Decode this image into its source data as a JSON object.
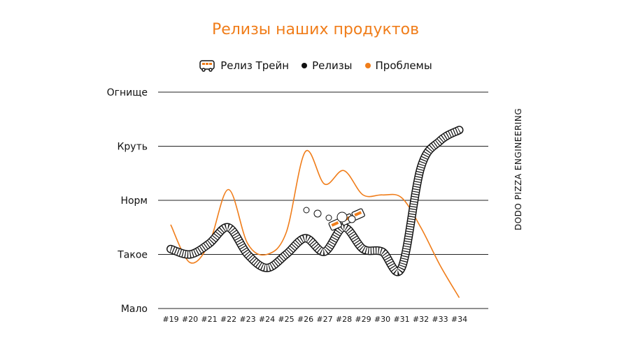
{
  "chart_data": {
    "type": "line",
    "title": "Релизы наших продуктов",
    "categories": [
      "#19",
      "#20",
      "#21",
      "#22",
      "#23",
      "#24",
      "#25",
      "#26",
      "#27",
      "#28",
      "#29",
      "#30",
      "#31",
      "#32",
      "#33",
      "#34"
    ],
    "y_levels": [
      "Мало",
      "Такое",
      "Норм",
      "Круть",
      "Огнище"
    ],
    "ylim": [
      0,
      4
    ],
    "grid": true,
    "legend_position": "top-center",
    "series": [
      {
        "name": "Релиз Трейн",
        "kind": "train-track",
        "color": "#111111",
        "values": [
          1.1,
          1.0,
          1.2,
          1.5,
          1.0,
          0.75,
          1.0,
          1.3,
          1.05,
          1.5,
          1.1,
          1.05,
          0.75,
          2.6,
          3.1,
          3.3
        ]
      },
      {
        "name": "Релизы",
        "kind": "dot",
        "color": "#111111",
        "values": [
          1.1,
          1.0,
          1.2,
          1.5,
          1.0,
          0.75,
          1.0,
          1.3,
          1.05,
          1.5,
          1.1,
          1.05,
          0.75,
          2.6,
          3.1,
          3.3
        ]
      },
      {
        "name": "Проблемы",
        "kind": "line",
        "color": "#f07d1a",
        "values": [
          1.55,
          0.85,
          1.2,
          2.2,
          1.2,
          1.0,
          1.4,
          2.9,
          2.3,
          2.55,
          2.1,
          2.1,
          2.05,
          1.5,
          0.8,
          0.2
        ]
      }
    ],
    "side_note": "DODO PIZZA ENGINEERING"
  },
  "colors": {
    "accent": "#f07d1a",
    "ink": "#111111",
    "grid": "#222222"
  }
}
